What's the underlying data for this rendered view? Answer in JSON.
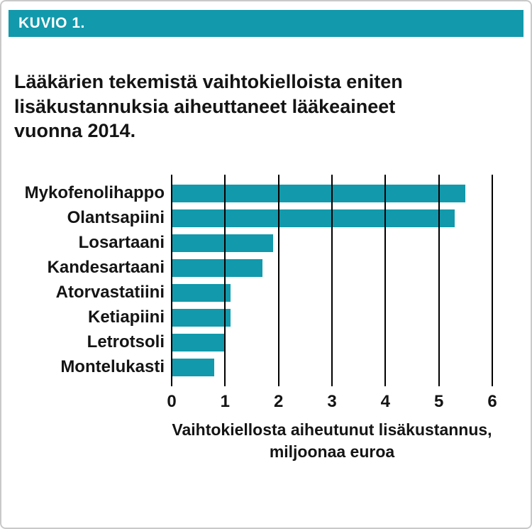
{
  "frame": {
    "header_label": "KUVIO 1."
  },
  "title": "Lääkärien tekemistä vaihtokielloista eniten\nlisäkustannuksia aiheuttaneet lääkeaineet\nvuonna 2014.",
  "colors": {
    "accent": "#1299ab",
    "bar": "#1299ab",
    "gridline": "#000000"
  },
  "chart_data": {
    "type": "bar",
    "orientation": "horizontal",
    "title": "Lääkärien tekemistä vaihtokielloista eniten lisäkustannuksia aiheuttaneet lääkeaineet vuonna 2014.",
    "categories": [
      "Mykofenolihappo",
      "Olantsapiini",
      "Losartaani",
      "Kandesartaani",
      "Atorvastatiini",
      "Ketiapiini",
      "Letrotsoli",
      "Montelukasti"
    ],
    "values": [
      5.5,
      5.3,
      1.9,
      1.7,
      1.1,
      1.1,
      1.0,
      0.8
    ],
    "xlim": [
      0,
      6
    ],
    "xticks": [
      0,
      1,
      2,
      3,
      4,
      5,
      6
    ],
    "xlabel": "Vaihtokiellosta aiheutunut lisäkustannus,\nmiljoonaa euroa",
    "ylabel": "",
    "grid": true,
    "legend": false,
    "bar_color": "#1299ab"
  }
}
